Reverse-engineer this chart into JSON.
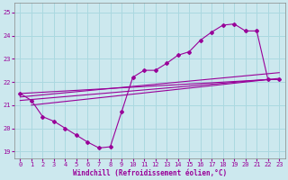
{
  "xlabel": "Windchill (Refroidissement éolien,°C)",
  "background_color": "#cce8ee",
  "line_color": "#990099",
  "grid_color": "#aad8e0",
  "xlim": [
    -0.5,
    23.5
  ],
  "ylim": [
    18.7,
    25.4
  ],
  "yticks": [
    19,
    20,
    21,
    22,
    23,
    24,
    25
  ],
  "xticks": [
    0,
    1,
    2,
    3,
    4,
    5,
    6,
    7,
    8,
    9,
    10,
    11,
    12,
    13,
    14,
    15,
    16,
    17,
    18,
    19,
    20,
    21,
    22,
    23
  ],
  "series_main_x": [
    0,
    1,
    2,
    3,
    4,
    5,
    6,
    7,
    8,
    9,
    10,
    11,
    12,
    13,
    14,
    15,
    16,
    17,
    18,
    19,
    20,
    21,
    22,
    23
  ],
  "series_main_y": [
    21.5,
    21.2,
    20.5,
    20.3,
    20.0,
    19.7,
    19.4,
    19.15,
    19.2,
    20.7,
    22.2,
    22.5,
    22.5,
    22.8,
    23.15,
    23.3,
    23.8,
    24.15,
    24.45,
    24.5,
    24.2,
    24.2,
    22.1,
    22.1
  ],
  "trend1_x": [
    0,
    23
  ],
  "trend1_y": [
    21.2,
    22.15
  ],
  "trend2_x": [
    0,
    23
  ],
  "trend2_y": [
    21.35,
    22.4
  ],
  "trend3_x": [
    0,
    22
  ],
  "trend3_y": [
    21.5,
    22.1
  ],
  "long_line_x": [
    1,
    22
  ],
  "long_line_y": [
    21.0,
    22.1
  ]
}
